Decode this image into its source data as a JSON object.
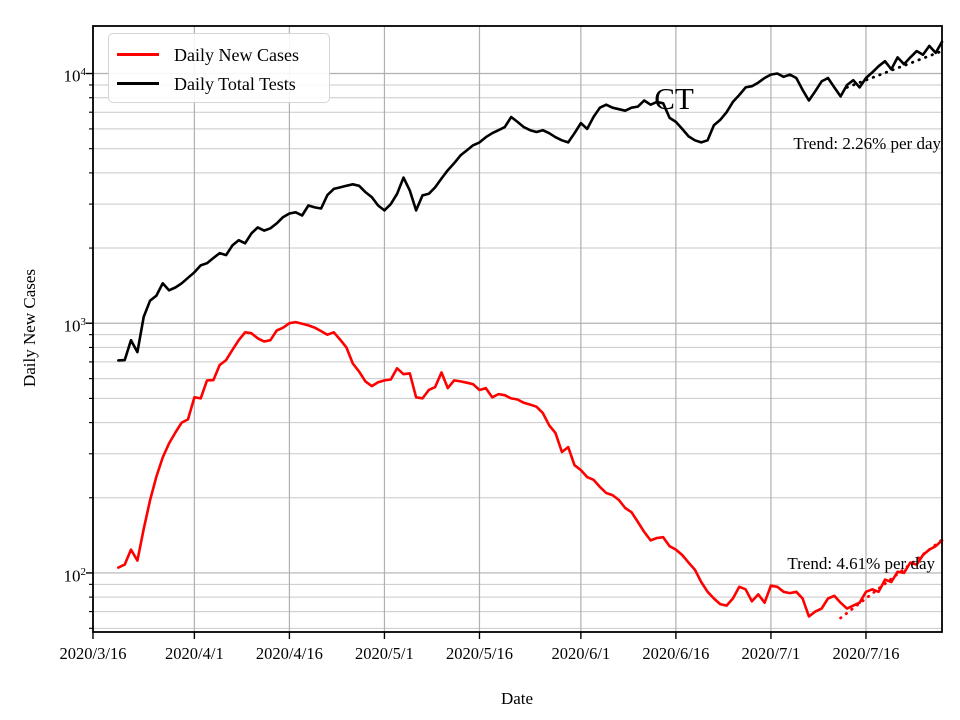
{
  "figure": {
    "state_label": "CT",
    "axes": {
      "x_label": "Date",
      "y_label": "Daily New Cases"
    },
    "legend": {
      "cases_label": "Daily New Cases",
      "tests_label": "Daily Total Tests"
    },
    "annotations": {
      "tests_trend_label": "Trend: 2.26% per day",
      "cases_trend_label": "Trend: 4.61% per day"
    }
  },
  "chart_data": {
    "type": "line",
    "title": "CT",
    "xlabel": "Date",
    "ylabel": "Daily New Cases",
    "x_scale": "date",
    "y_scale": "log",
    "x_range": [
      "2020/3/16",
      "2020/7/28"
    ],
    "ylim": [
      58,
      15500
    ],
    "grid": "both",
    "legend_position": "upper left",
    "x_ticks": [
      "2020/3/16",
      "2020/4/1",
      "2020/4/16",
      "2020/5/1",
      "2020/5/16",
      "2020/6/1",
      "2020/6/16",
      "2020/7/1",
      "2020/7/16"
    ],
    "y_ticks": [
      {
        "label": "10^4",
        "base": "10",
        "exp": "4",
        "value": 10000
      },
      {
        "label": "10^3",
        "base": "10",
        "exp": "3",
        "value": 1000
      },
      {
        "label": "10^2",
        "base": "10",
        "exp": "2",
        "value": 100
      }
    ],
    "dates": [
      "2020/3/20",
      "2020/3/21",
      "2020/3/22",
      "2020/3/23",
      "2020/3/24",
      "2020/3/25",
      "2020/3/26",
      "2020/3/27",
      "2020/3/28",
      "2020/3/29",
      "2020/3/30",
      "2020/3/31",
      "2020/4/1",
      "2020/4/2",
      "2020/4/3",
      "2020/4/4",
      "2020/4/5",
      "2020/4/6",
      "2020/4/7",
      "2020/4/8",
      "2020/4/9",
      "2020/4/10",
      "2020/4/11",
      "2020/4/12",
      "2020/4/13",
      "2020/4/14",
      "2020/4/15",
      "2020/4/16",
      "2020/4/17",
      "2020/4/18",
      "2020/4/19",
      "2020/4/20",
      "2020/4/21",
      "2020/4/22",
      "2020/4/23",
      "2020/4/24",
      "2020/4/25",
      "2020/4/26",
      "2020/4/27",
      "2020/4/28",
      "2020/4/29",
      "2020/4/30",
      "2020/5/1",
      "2020/5/2",
      "2020/5/3",
      "2020/5/4",
      "2020/5/5",
      "2020/5/6",
      "2020/5/7",
      "2020/5/8",
      "2020/5/9",
      "2020/5/10",
      "2020/5/11",
      "2020/5/12",
      "2020/5/13",
      "2020/5/14",
      "2020/5/15",
      "2020/5/16",
      "2020/5/17",
      "2020/5/18",
      "2020/5/19",
      "2020/5/20",
      "2020/5/21",
      "2020/5/22",
      "2020/5/23",
      "2020/5/24",
      "2020/5/25",
      "2020/5/26",
      "2020/5/27",
      "2020/5/28",
      "2020/5/29",
      "2020/5/30",
      "2020/5/31",
      "2020/6/1",
      "2020/6/2",
      "2020/6/3",
      "2020/6/4",
      "2020/6/5",
      "2020/6/6",
      "2020/6/7",
      "2020/6/8",
      "2020/6/9",
      "2020/6/10",
      "2020/6/11",
      "2020/6/12",
      "2020/6/13",
      "2020/6/14",
      "2020/6/15",
      "2020/6/16",
      "2020/6/17",
      "2020/6/18",
      "2020/6/19",
      "2020/6/20",
      "2020/6/21",
      "2020/6/22",
      "2020/6/23",
      "2020/6/24",
      "2020/6/25",
      "2020/6/26",
      "2020/6/27",
      "2020/6/28",
      "2020/6/29",
      "2020/6/30",
      "2020/7/1",
      "2020/7/2",
      "2020/7/3",
      "2020/7/4",
      "2020/7/5",
      "2020/7/6",
      "2020/7/7",
      "2020/7/8",
      "2020/7/9",
      "2020/7/10",
      "2020/7/11",
      "2020/7/12",
      "2020/7/13",
      "2020/7/14",
      "2020/7/15",
      "2020/7/16",
      "2020/7/17",
      "2020/7/18",
      "2020/7/19",
      "2020/7/20",
      "2020/7/21",
      "2020/7/22",
      "2020/7/23",
      "2020/7/24",
      "2020/7/25",
      "2020/7/26",
      "2020/7/27",
      "2020/7/28"
    ],
    "series": [
      {
        "name": "Daily New Cases",
        "color": "#ff0000",
        "values": [
          105,
          108,
          124,
          112,
          150,
          195,
          243,
          290,
          330,
          365,
          400,
          412,
          505,
          500,
          590,
          592,
          680,
          712,
          782,
          855,
          920,
          912,
          870,
          845,
          855,
          935,
          960,
          1000,
          1010,
          995,
          980,
          960,
          930,
          900,
          920,
          860,
          800,
          690,
          640,
          585,
          560,
          580,
          590,
          595,
          660,
          625,
          630,
          505,
          500,
          540,
          555,
          635,
          550,
          590,
          585,
          578,
          570,
          540,
          550,
          505,
          520,
          515,
          500,
          495,
          480,
          472,
          463,
          437,
          390,
          363,
          305,
          319,
          270,
          258,
          242,
          236,
          221,
          209,
          205,
          196,
          182,
          175,
          160,
          146,
          135,
          138,
          139,
          128,
          124,
          118,
          110,
          103,
          92,
          84,
          79,
          75,
          74,
          79,
          88,
          86,
          77,
          82,
          76,
          89,
          88,
          84,
          83,
          84,
          79,
          67,
          70,
          72,
          79,
          81,
          76,
          72,
          74,
          76,
          84,
          86,
          84,
          94,
          92,
          101,
          100,
          110,
          108,
          118,
          124,
          128,
          135
        ]
      },
      {
        "name": "Daily Total Tests",
        "color": "#000000",
        "values": [
          710,
          712,
          855,
          766,
          1060,
          1230,
          1290,
          1445,
          1355,
          1390,
          1445,
          1520,
          1600,
          1705,
          1740,
          1825,
          1910,
          1875,
          2050,
          2150,
          2090,
          2290,
          2420,
          2350,
          2400,
          2510,
          2660,
          2750,
          2780,
          2700,
          2960,
          2910,
          2880,
          3260,
          3450,
          3500,
          3550,
          3600,
          3550,
          3350,
          3200,
          2960,
          2830,
          3000,
          3300,
          3830,
          3400,
          2830,
          3250,
          3300,
          3500,
          3800,
          4100,
          4370,
          4700,
          4920,
          5160,
          5300,
          5560,
          5770,
          5930,
          6100,
          6700,
          6400,
          6100,
          5930,
          5830,
          5930,
          5770,
          5560,
          5400,
          5300,
          5770,
          6330,
          6000,
          6700,
          7300,
          7500,
          7300,
          7200,
          7100,
          7300,
          7370,
          7800,
          7500,
          7700,
          7600,
          6640,
          6400,
          6000,
          5600,
          5400,
          5300,
          5400,
          6210,
          6520,
          7000,
          7700,
          8200,
          8800,
          8900,
          9200,
          9600,
          9900,
          10000,
          9700,
          9900,
          9600,
          8600,
          7800,
          8500,
          9300,
          9600,
          8800,
          8100,
          9000,
          9400,
          8800,
          9600,
          10100,
          10700,
          11200,
          10400,
          11600,
          10900,
          11600,
          12300,
          11900,
          12900,
          12100,
          13400
        ]
      }
    ],
    "trend_lines": [
      {
        "name": "cases-trend",
        "series": "Daily New Cases",
        "color": "#ff0000",
        "style": "dotted",
        "pct_per_day": 4.61,
        "start_date": "2020/7/12",
        "end_date": "2020/7/28",
        "start_value": 66
      },
      {
        "name": "tests-trend",
        "series": "Daily Total Tests",
        "color": "#000000",
        "style": "dotted",
        "pct_per_day": 2.26,
        "start_date": "2020/7/13",
        "end_date": "2020/7/28",
        "start_value": 8800
      }
    ]
  }
}
